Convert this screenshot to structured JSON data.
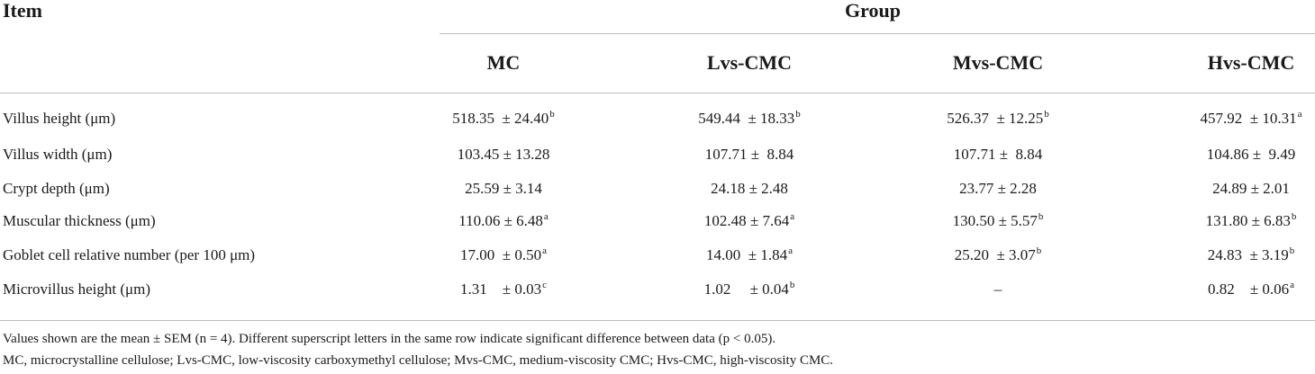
{
  "table": {
    "item_header": "Item",
    "group_header": "Group",
    "columns": [
      "MC",
      "Lvs-CMC",
      "Mvs-CMC",
      "Hvs-CMC"
    ],
    "rows": [
      {
        "label": "Villus height (μm)",
        "cells": [
          {
            "value": "518.35  ± 24.40",
            "sup": "b"
          },
          {
            "value": "549.44  ± 18.33",
            "sup": "b"
          },
          {
            "value": "526.37  ± 12.25",
            "sup": "b"
          },
          {
            "value": "457.92  ± 10.31",
            "sup": "a"
          }
        ]
      },
      {
        "label": "Villus width (μm)",
        "cells": [
          {
            "value": "103.45 ± 13.28",
            "sup": ""
          },
          {
            "value": "107.71 ±  8.84",
            "sup": ""
          },
          {
            "value": "107.71 ±  8.84",
            "sup": ""
          },
          {
            "value": "104.86 ±  9.49",
            "sup": ""
          }
        ]
      },
      {
        "label": "Crypt depth (μm)",
        "cells": [
          {
            "value": "25.59 ± 3.14",
            "sup": ""
          },
          {
            "value": "24.18 ± 2.48",
            "sup": ""
          },
          {
            "value": "23.77 ± 2.28",
            "sup": ""
          },
          {
            "value": "24.89 ± 2.01",
            "sup": ""
          }
        ]
      },
      {
        "label": "Muscular thickness (μm)",
        "cells": [
          {
            "value": "110.06 ± 6.48",
            "sup": "a"
          },
          {
            "value": "102.48 ± 7.64",
            "sup": "a"
          },
          {
            "value": "130.50 ± 5.57",
            "sup": "b"
          },
          {
            "value": "131.80 ± 6.83",
            "sup": "b"
          }
        ]
      },
      {
        "label": "Goblet cell relative number (per 100 μm)",
        "cells": [
          {
            "value": "17.00  ± 0.50",
            "sup": "a"
          },
          {
            "value": "14.00  ± 1.84",
            "sup": "a"
          },
          {
            "value": "25.20  ± 3.07",
            "sup": "b"
          },
          {
            "value": "24.83  ± 3.19",
            "sup": "b"
          }
        ]
      },
      {
        "label": "Microvillus height (μm)",
        "cells": [
          {
            "value": "1.31    ± 0.03",
            "sup": "c"
          },
          {
            "value": "1.02     ± 0.04",
            "sup": "b"
          },
          {
            "value": "–",
            "sup": ""
          },
          {
            "value": "0.82    ± 0.06",
            "sup": "a"
          }
        ]
      }
    ],
    "footnotes": [
      "Values shown are the mean ± SEM (n = 4). Different superscript letters in the same row indicate significant difference between data (p < 0.05).",
      "MC, microcrystalline cellulose; Lvs-CMC, low-viscosity carboxymethyl cellulose; Mvs-CMC, medium-viscosity CMC; Hvs-CMC, high-viscosity CMC."
    ]
  }
}
